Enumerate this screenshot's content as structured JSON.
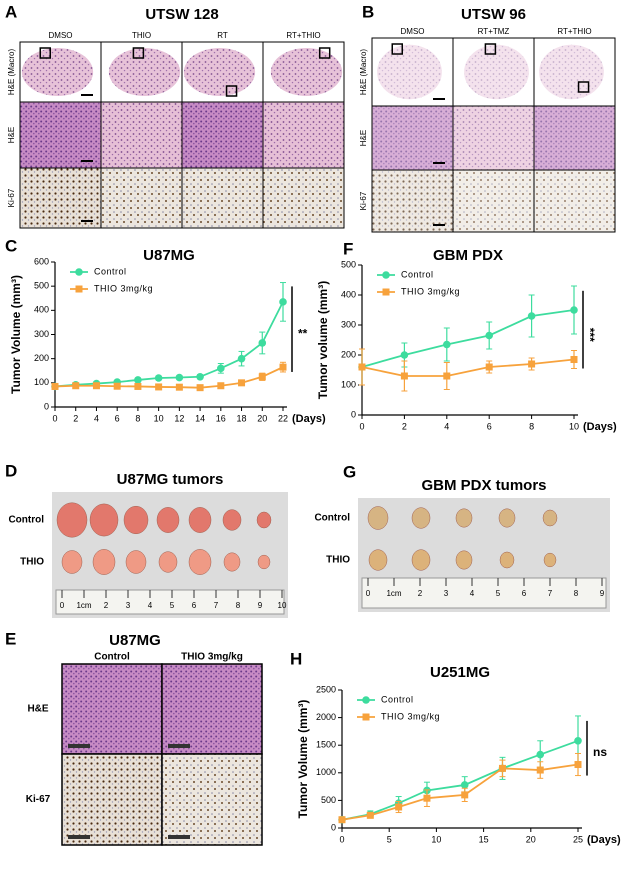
{
  "panels": {
    "A": {
      "letter": "A",
      "title": "UTSW 128",
      "columns": [
        "DMSO",
        "THIO",
        "RT",
        "RT+THIO"
      ],
      "rows": [
        "H&E (Macro)",
        "H&E",
        "Ki-67"
      ]
    },
    "B": {
      "letter": "B",
      "title": "UTSW 96",
      "columns": [
        "DMSO",
        "RT+TMZ",
        "RT+THIO"
      ],
      "rows": [
        "H&E (Macro)",
        "H&E",
        "Ki-67"
      ]
    },
    "D": {
      "letter": "D",
      "title": "U87MG tumors",
      "rows": [
        "Control",
        "THIO"
      ],
      "ruler": [
        "0",
        "1cm",
        "2",
        "3",
        "4",
        "5",
        "6",
        "7",
        "8",
        "9",
        "10"
      ]
    },
    "G": {
      "letter": "G",
      "title": "GBM PDX tumors",
      "rows": [
        "Control",
        "THIO"
      ],
      "ruler": [
        "0",
        "1cm",
        "2",
        "3",
        "4",
        "5",
        "6",
        "7",
        "8",
        "9"
      ]
    },
    "E": {
      "letter": "E",
      "title": "U87MG",
      "columns": [
        "Control",
        "THIO 3mg/kg"
      ],
      "rows": [
        "H&E",
        "Ki-67"
      ]
    }
  },
  "chart_data": [
    {
      "letter": "C",
      "type": "line",
      "title": "U87MG",
      "y_label": "Tumor Volume (mm³)",
      "x_label": "(Days)",
      "significance": "**",
      "legend": "upper left",
      "x": [
        0,
        2,
        4,
        6,
        8,
        10,
        12,
        14,
        16,
        18,
        20,
        22
      ],
      "xlim": [
        0,
        22
      ],
      "xticks": [
        0,
        2,
        4,
        6,
        8,
        10,
        12,
        14,
        16,
        18,
        20,
        22
      ],
      "ylim": [
        0,
        600
      ],
      "yticks": [
        0,
        100,
        200,
        300,
        400,
        500,
        600
      ],
      "series": [
        {
          "name": "Control",
          "color": "#3ddc9e",
          "marker": "circle",
          "values": [
            85,
            92,
            97,
            103,
            112,
            120,
            122,
            125,
            160,
            200,
            265,
            435
          ],
          "errors": [
            5,
            5,
            5,
            5,
            8,
            8,
            8,
            8,
            20,
            30,
            45,
            80
          ]
        },
        {
          "name": "THIO 3mg/kg",
          "color": "#f7a23c",
          "marker": "square",
          "values": [
            85,
            88,
            88,
            86,
            85,
            83,
            82,
            80,
            88,
            100,
            125,
            165
          ],
          "errors": [
            5,
            5,
            5,
            5,
            5,
            8,
            8,
            5,
            8,
            10,
            15,
            20
          ]
        }
      ]
    },
    {
      "letter": "F",
      "type": "line",
      "title": "GBM PDX",
      "y_label": "Tumor volume (mm³)",
      "x_label": "(Days)",
      "significance": "***",
      "legend": "upper left",
      "x": [
        0,
        2,
        4,
        6,
        8,
        10
      ],
      "xlim": [
        0,
        10
      ],
      "xticks": [
        0,
        2,
        4,
        6,
        8,
        10
      ],
      "ylim": [
        0,
        500
      ],
      "yticks": [
        0,
        100,
        200,
        300,
        400,
        500
      ],
      "series": [
        {
          "name": "Control",
          "color": "#3ddc9e",
          "marker": "circle",
          "values": [
            160,
            200,
            235,
            265,
            330,
            350
          ],
          "errors": [
            60,
            40,
            55,
            45,
            70,
            80
          ]
        },
        {
          "name": "THIO 3mg/kg",
          "color": "#f7a23c",
          "marker": "square",
          "values": [
            160,
            130,
            130,
            160,
            170,
            185
          ],
          "errors": [
            60,
            50,
            45,
            20,
            20,
            30
          ]
        }
      ]
    },
    {
      "letter": "H",
      "type": "line",
      "title": "U251MG",
      "y_label": "Tumor Volume (mm³)",
      "x_label": "(Days)",
      "significance": "ns",
      "legend": "upper left",
      "x": [
        0,
        3,
        6,
        9,
        13,
        17,
        21,
        25
      ],
      "xlim": [
        0,
        25
      ],
      "xticks": [
        0,
        5,
        10,
        15,
        20,
        25
      ],
      "ylim": [
        0,
        2500
      ],
      "yticks": [
        0,
        500,
        1000,
        1500,
        2000,
        2500
      ],
      "series": [
        {
          "name": "Control",
          "color": "#3ddc9e",
          "marker": "circle",
          "values": [
            150,
            250,
            450,
            680,
            780,
            1080,
            1330,
            1580
          ],
          "errors": [
            30,
            60,
            120,
            150,
            150,
            200,
            250,
            450
          ]
        },
        {
          "name": "THIO 3mg/kg",
          "color": "#f7a23c",
          "marker": "square",
          "values": [
            150,
            230,
            380,
            540,
            600,
            1080,
            1050,
            1150
          ],
          "errors": [
            30,
            50,
            100,
            150,
            120,
            150,
            150,
            200
          ]
        }
      ]
    }
  ]
}
